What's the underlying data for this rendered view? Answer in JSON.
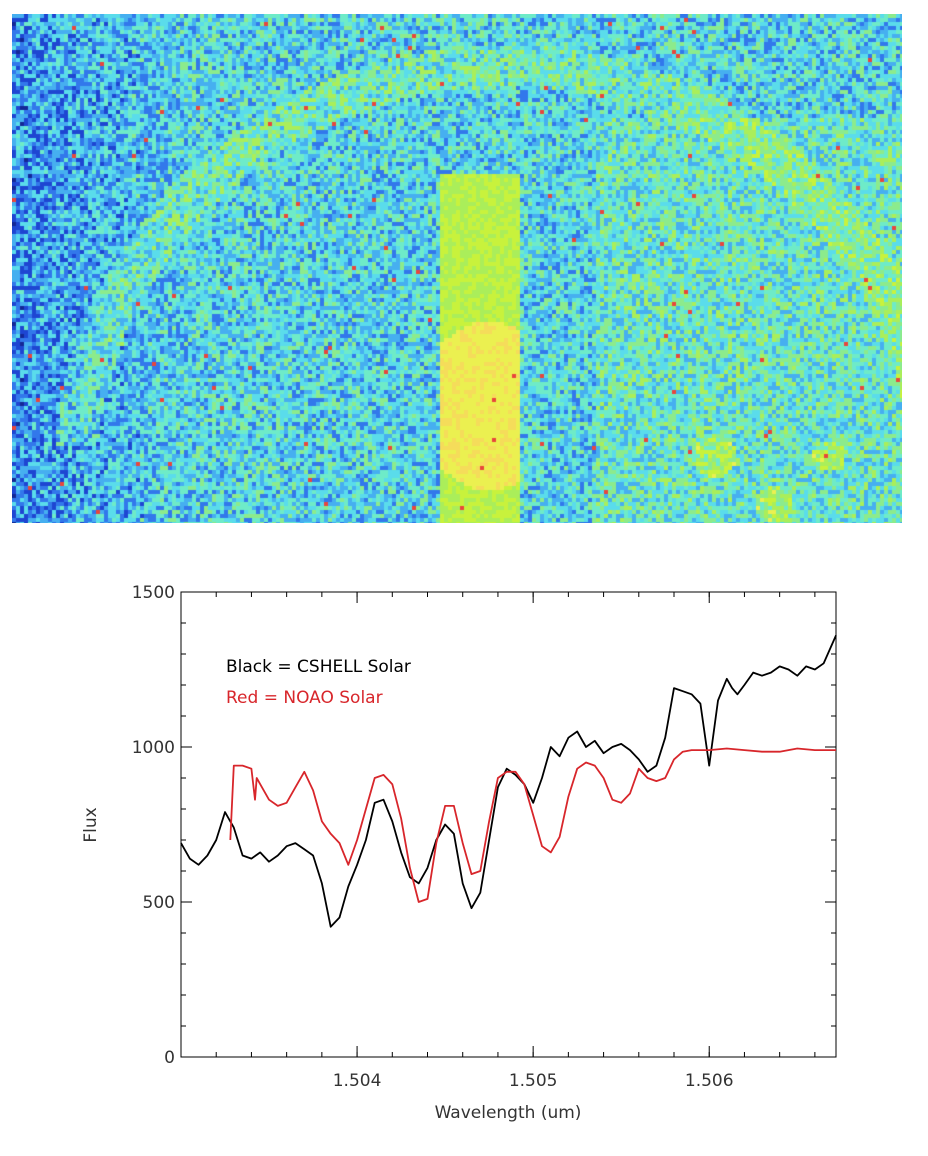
{
  "detector_image": {
    "description_colors": [
      "#1f3fcf",
      "#3a8cf0",
      "#5ce0e8",
      "#8ee86a",
      "#b8f23a",
      "#f4f060",
      "#e84a3a"
    ]
  },
  "chart_data": {
    "type": "line",
    "xlabel": "Wavelength (um)",
    "ylabel": "Flux",
    "xlim": [
      1.503,
      1.50672
    ],
    "ylim": [
      0,
      1500
    ],
    "xticks": [
      1.504,
      1.505,
      1.506
    ],
    "xtick_labels": [
      "1.504",
      "1.505",
      "1.506"
    ],
    "yticks": [
      0,
      500,
      1000,
      1500
    ],
    "ytick_labels": [
      "0",
      "500",
      "1000",
      "1500"
    ],
    "legend_placement": "top-left",
    "grid": false,
    "series": [
      {
        "name": "Black = CSHELL Solar",
        "color": "#000000",
        "x": [
          1.503,
          1.50305,
          1.5031,
          1.50315,
          1.5032,
          1.50325,
          1.5033,
          1.50335,
          1.5034,
          1.50345,
          1.5035,
          1.50355,
          1.5036,
          1.50365,
          1.5037,
          1.50375,
          1.5038,
          1.50385,
          1.5039,
          1.50395,
          1.504,
          1.50405,
          1.5041,
          1.50415,
          1.5042,
          1.50425,
          1.5043,
          1.50435,
          1.5044,
          1.50445,
          1.5045,
          1.50455,
          1.5046,
          1.50465,
          1.5047,
          1.50475,
          1.5048,
          1.50485,
          1.5049,
          1.50495,
          1.505,
          1.50505,
          1.5051,
          1.50515,
          1.5052,
          1.50525,
          1.5053,
          1.50535,
          1.5054,
          1.50545,
          1.5055,
          1.50555,
          1.5056,
          1.50565,
          1.5057,
          1.50575,
          1.5058,
          1.50585,
          1.5059,
          1.50595,
          1.506,
          1.50605,
          1.5061,
          1.50613,
          1.50616,
          1.5062,
          1.50625,
          1.5063,
          1.50635,
          1.5064,
          1.50645,
          1.5065,
          1.50655,
          1.5066,
          1.50665,
          1.50672
        ],
        "y": [
          690,
          640,
          620,
          650,
          700,
          790,
          740,
          650,
          640,
          660,
          630,
          650,
          680,
          690,
          670,
          650,
          560,
          420,
          450,
          550,
          620,
          700,
          820,
          830,
          760,
          660,
          580,
          560,
          610,
          700,
          750,
          720,
          560,
          480,
          530,
          700,
          870,
          930,
          910,
          880,
          820,
          900,
          1000,
          970,
          1030,
          1050,
          1000,
          1020,
          980,
          1000,
          1010,
          990,
          960,
          920,
          940,
          1030,
          1190,
          1180,
          1170,
          1140,
          940,
          1150,
          1220,
          1190,
          1170,
          1200,
          1240,
          1230,
          1240,
          1260,
          1250,
          1230,
          1260,
          1250,
          1270,
          1360
        ]
      },
      {
        "name": "Red = NOAO Solar",
        "color": "#d8262b",
        "x": [
          1.50328,
          1.5033,
          1.50335,
          1.5034,
          1.50342,
          1.50343,
          1.50345,
          1.5035,
          1.50355,
          1.5036,
          1.50365,
          1.5037,
          1.50375,
          1.5038,
          1.50385,
          1.5039,
          1.50395,
          1.504,
          1.50405,
          1.5041,
          1.50415,
          1.5042,
          1.50425,
          1.5043,
          1.50435,
          1.5044,
          1.50445,
          1.5045,
          1.50455,
          1.5046,
          1.50465,
          1.5047,
          1.50475,
          1.5048,
          1.50485,
          1.5049,
          1.50495,
          1.505,
          1.50505,
          1.5051,
          1.50515,
          1.5052,
          1.50525,
          1.5053,
          1.50535,
          1.5054,
          1.50545,
          1.5055,
          1.50555,
          1.5056,
          1.50565,
          1.5057,
          1.50575,
          1.5058,
          1.50585,
          1.5059,
          1.50595,
          1.506,
          1.5061,
          1.5062,
          1.5063,
          1.5064,
          1.5065,
          1.5066,
          1.50672
        ],
        "y": [
          700,
          940,
          940,
          930,
          830,
          900,
          880,
          830,
          810,
          820,
          870,
          920,
          860,
          760,
          720,
          690,
          620,
          700,
          800,
          900,
          910,
          880,
          770,
          610,
          500,
          510,
          690,
          810,
          810,
          690,
          590,
          600,
          760,
          900,
          920,
          920,
          880,
          780,
          680,
          660,
          710,
          840,
          930,
          950,
          940,
          900,
          830,
          820,
          850,
          930,
          900,
          890,
          900,
          960,
          985,
          990,
          990,
          990,
          995,
          990,
          985,
          985,
          995,
          990,
          990
        ]
      }
    ]
  }
}
